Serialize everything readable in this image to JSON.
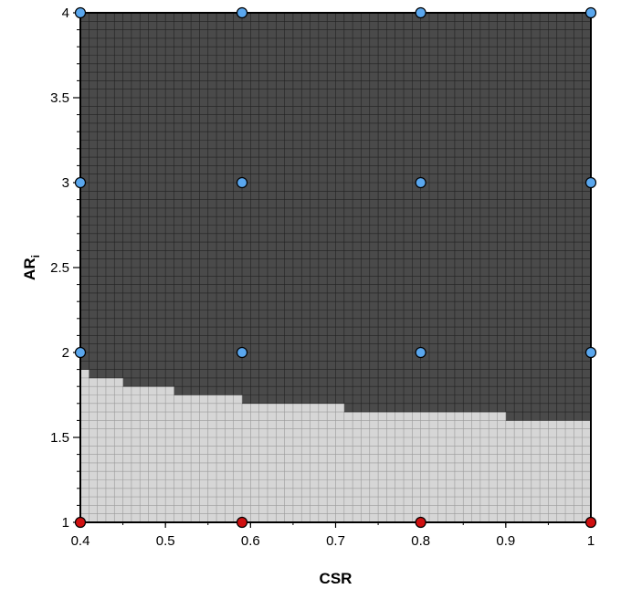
{
  "chart_data": {
    "type": "heatmap",
    "title": "",
    "xlabel": "CSR",
    "ylabel": "AR",
    "ylabel_subscript": "i",
    "xlim": [
      0.4,
      1.0
    ],
    "ylim": [
      1.0,
      4.0
    ],
    "x_ticks": [
      {
        "value": 0.4,
        "label": "0.4"
      },
      {
        "value": 0.5,
        "label": "0.5"
      },
      {
        "value": 0.6,
        "label": "0.6"
      },
      {
        "value": 0.7,
        "label": "0.7"
      },
      {
        "value": 0.8,
        "label": "0.8"
      },
      {
        "value": 0.9,
        "label": "0.9"
      },
      {
        "value": 1.0,
        "label": "1"
      }
    ],
    "y_ticks": [
      {
        "value": 1.0,
        "label": "1"
      },
      {
        "value": 1.5,
        "label": "1.5"
      },
      {
        "value": 2.0,
        "label": "2"
      },
      {
        "value": 2.5,
        "label": "2.5"
      },
      {
        "value": 3.0,
        "label": "3"
      },
      {
        "value": 3.5,
        "label": "3.5"
      },
      {
        "value": 4.0,
        "label": "4"
      }
    ],
    "grid": true,
    "grid_step_x": 0.01,
    "grid_step_y": 0.05,
    "colors": {
      "upper_region": "#4a4a4a",
      "lower_region": "#d6d6d6",
      "upper_gridline": "#222222",
      "lower_gridline": "#9a9a9a",
      "blue_point": "#5aa7ee",
      "red_point": "#d01010",
      "point_edge": "#000000"
    },
    "boundary": [
      {
        "x_start": 0.4,
        "x_end": 0.41,
        "y": 1.9
      },
      {
        "x_start": 0.41,
        "x_end": 0.45,
        "y": 1.85
      },
      {
        "x_start": 0.45,
        "x_end": 0.51,
        "y": 1.8
      },
      {
        "x_start": 0.51,
        "x_end": 0.59,
        "y": 1.75
      },
      {
        "x_start": 0.59,
        "x_end": 0.71,
        "y": 1.7
      },
      {
        "x_start": 0.71,
        "x_end": 0.9,
        "y": 1.65
      },
      {
        "x_start": 0.9,
        "x_end": 1.0,
        "y": 1.6
      }
    ],
    "series": [
      {
        "color": "#5aa7ee",
        "points": [
          {
            "x": 0.4,
            "y": 4
          },
          {
            "x": 0.59,
            "y": 4
          },
          {
            "x": 0.8,
            "y": 4
          },
          {
            "x": 1.0,
            "y": 4
          },
          {
            "x": 0.4,
            "y": 3
          },
          {
            "x": 0.59,
            "y": 3
          },
          {
            "x": 0.8,
            "y": 3
          },
          {
            "x": 1.0,
            "y": 3
          },
          {
            "x": 0.4,
            "y": 2
          },
          {
            "x": 0.59,
            "y": 2
          },
          {
            "x": 0.8,
            "y": 2
          },
          {
            "x": 1.0,
            "y": 2
          }
        ]
      },
      {
        "color": "#d01010",
        "points": [
          {
            "x": 0.4,
            "y": 1
          },
          {
            "x": 0.59,
            "y": 1
          },
          {
            "x": 0.8,
            "y": 1
          },
          {
            "x": 1.0,
            "y": 1
          }
        ]
      }
    ]
  }
}
